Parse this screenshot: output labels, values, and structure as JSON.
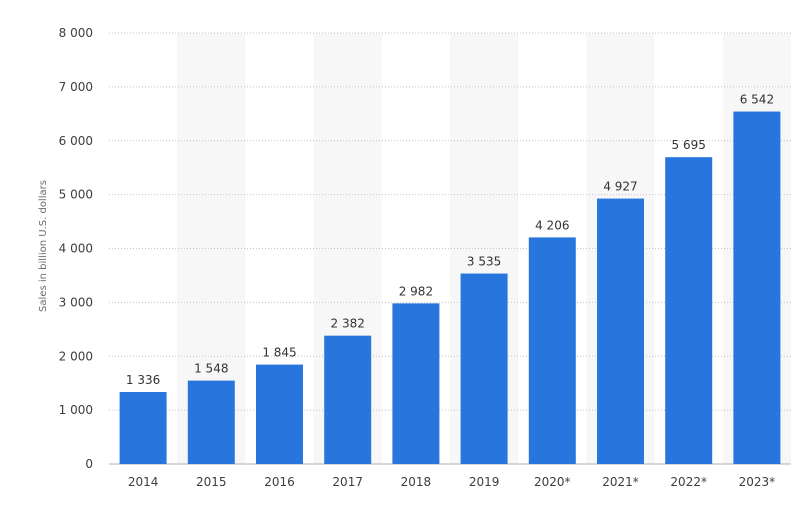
{
  "chart_data": {
    "type": "bar",
    "title": "",
    "xlabel": "",
    "ylabel": "Sales in billion U.S. dollars",
    "categories": [
      "2014",
      "2015",
      "2016",
      "2017",
      "2018",
      "2019",
      "2020*",
      "2021*",
      "2022*",
      "2023*"
    ],
    "values": [
      1336,
      1548,
      1845,
      2382,
      2982,
      3535,
      4206,
      4927,
      5695,
      6542
    ],
    "value_labels": [
      "1 336",
      "1 548",
      "1 845",
      "2 382",
      "2 982",
      "3 535",
      "4 206",
      "4 927",
      "5 695",
      "6 542"
    ],
    "ylim": [
      0,
      8000
    ],
    "yticks": [
      0,
      1000,
      2000,
      3000,
      4000,
      5000,
      6000,
      7000,
      8000
    ],
    "ytick_labels": [
      "0",
      "1 000",
      "2 000",
      "3 000",
      "4 000",
      "5 000",
      "6 000",
      "7 000",
      "8 000"
    ],
    "grid": true,
    "legend": "none",
    "colors": {
      "bar": "#2876dd",
      "band": "#f7f7f7",
      "grid": "#c4c4c4"
    }
  }
}
